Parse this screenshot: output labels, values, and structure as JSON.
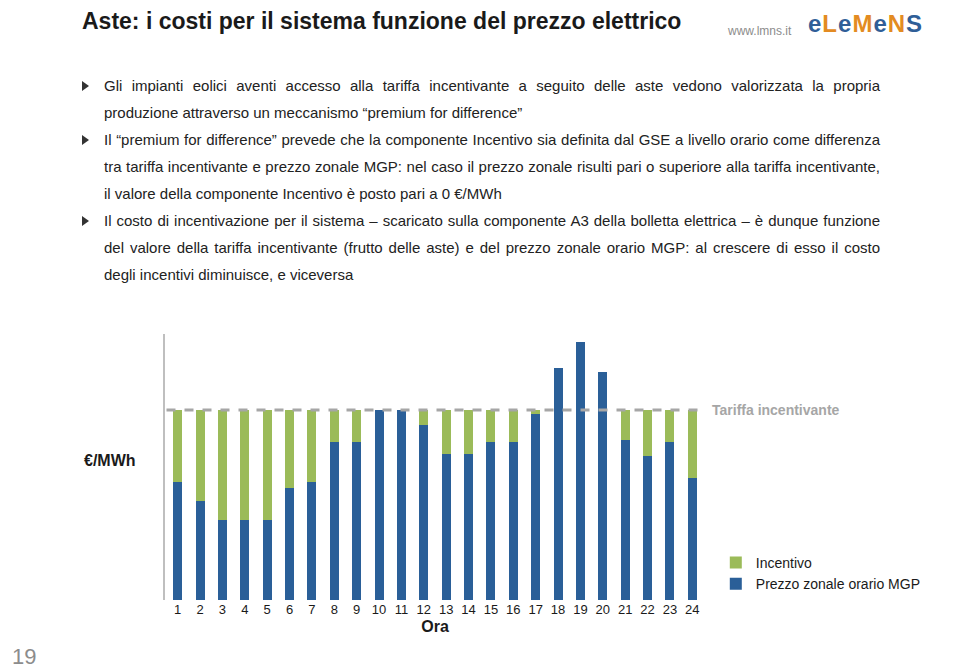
{
  "slide": {
    "title": "Aste: i costi per il sistema funzione del prezzo elettrico",
    "website": "www.lmns.it",
    "logo": "eLeMeNS",
    "page_number": "19",
    "bullets": [
      "Gli impianti eolici aventi accesso alla tariffa incentivante a seguito delle aste vedono valorizzata la propria produzione attraverso un meccanismo “premium for difference”",
      "Il “premium for difference” prevede che la componente Incentivo sia definita dal GSE a livello orario come differenza tra tariffa incentivante e prezzo zonale MGP: nel caso il prezzo zonale risulti pari o superiore alla tariffa incentivante, il valore della componente Incentivo è posto pari a 0 €/MWh",
      "Il costo di incentivazione per il sistema – scaricato sulla componente A3 della bolletta elettrica – è dunque funzione del valore della tariffa incentivante (frutto delle aste) e del prezzo zonale orario MGP: al crescere di esso il costo degli incentivi diminuisce, e viceversa"
    ]
  },
  "chart_data": {
    "type": "bar",
    "stacked": true,
    "x_label": "Ora",
    "y_label": "€/MWh",
    "categories": [
      "1",
      "2",
      "3",
      "4",
      "5",
      "6",
      "7",
      "8",
      "9",
      "10",
      "11",
      "12",
      "13",
      "14",
      "15",
      "16",
      "17",
      "18",
      "19",
      "20",
      "21",
      "22",
      "23",
      "24"
    ],
    "series": [
      {
        "name": "Prezzo zonale orario MGP",
        "color": "#2a5f98",
        "values": [
          62,
          52,
          42,
          42,
          42,
          59,
          62,
          83,
          83,
          100,
          100,
          92,
          77,
          77,
          83,
          83,
          98,
          122,
          136,
          120,
          84,
          76,
          83,
          64
        ]
      },
      {
        "name": "Incentivo",
        "color": "#9bbb59",
        "values": [
          38,
          48,
          58,
          58,
          58,
          41,
          38,
          17,
          17,
          0,
          0,
          8,
          23,
          23,
          17,
          17,
          2,
          0,
          0,
          0,
          16,
          24,
          17,
          36
        ]
      }
    ],
    "reference_line": {
      "label": "Tariffa incentivante",
      "value": 100,
      "color": "#a6a6a6",
      "line_style": "dash"
    },
    "ylim": [
      0,
      140
    ],
    "yticks": [],
    "tick_labels": "x",
    "grid": false,
    "legend": "bottom right"
  }
}
